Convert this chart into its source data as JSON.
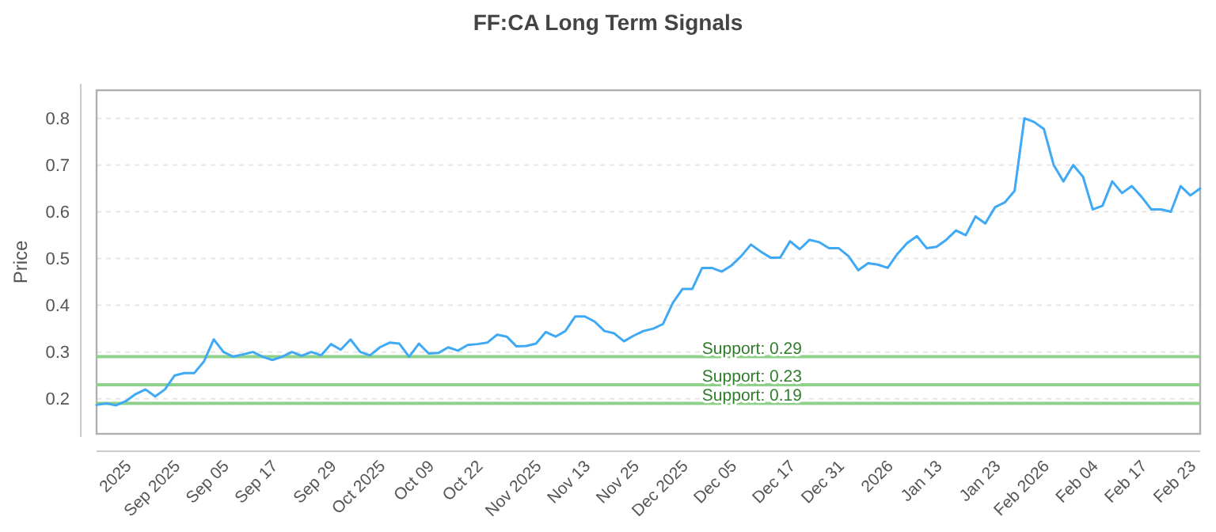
{
  "chart_data": {
    "type": "line",
    "title": "FF:CA Long Term Signals",
    "ylabel": "Price",
    "categories": [
      null,
      null,
      null,
      "2025",
      null,
      null,
      null,
      null,
      "Sep 2025",
      null,
      null,
      null,
      null,
      "Sep 05",
      null,
      null,
      null,
      null,
      "Sep 17",
      null,
      null,
      null,
      null,
      null,
      "Sep 29",
      null,
      null,
      null,
      null,
      "Oct 2025",
      null,
      null,
      null,
      null,
      "Oct 09",
      null,
      null,
      null,
      null,
      "Oct 22",
      null,
      null,
      null,
      null,
      null,
      "Nov 2025",
      null,
      null,
      null,
      null,
      "Nov 13",
      null,
      null,
      null,
      null,
      "Nov 25",
      null,
      null,
      null,
      null,
      "Dec 2025",
      null,
      null,
      null,
      null,
      "Dec 05",
      null,
      null,
      null,
      null,
      null,
      "Dec 17",
      null,
      null,
      null,
      null,
      "Dec 31",
      null,
      null,
      null,
      null,
      "2026",
      null,
      null,
      null,
      null,
      "Jan 13",
      null,
      null,
      null,
      null,
      null,
      "Jan 23",
      null,
      null,
      null,
      null,
      "Feb 2026",
      null,
      null,
      null,
      null,
      "Feb 04",
      null,
      null,
      null,
      null,
      "Feb 17",
      null,
      null,
      null,
      null,
      "Feb 23",
      null
    ],
    "series": [
      {
        "color": "#3fa9f5",
        "values": [
          0.187,
          0.19,
          0.186,
          0.195,
          0.21,
          0.22,
          0.205,
          0.22,
          0.25,
          0.255,
          0.255,
          0.28,
          0.327,
          0.3,
          0.29,
          0.295,
          0.3,
          0.29,
          0.283,
          0.29,
          0.3,
          0.292,
          0.3,
          0.293,
          0.317,
          0.305,
          0.327,
          0.3,
          0.293,
          0.31,
          0.32,
          0.318,
          0.29,
          0.318,
          0.297,
          0.298,
          0.31,
          0.303,
          0.315,
          0.317,
          0.32,
          0.337,
          0.333,
          0.312,
          0.313,
          0.318,
          0.343,
          0.333,
          0.345,
          0.376,
          0.376,
          0.365,
          0.345,
          0.34,
          0.323,
          0.335,
          0.345,
          0.35,
          0.36,
          0.405,
          0.435,
          0.435,
          0.48,
          0.48,
          0.472,
          0.485,
          0.505,
          0.53,
          0.515,
          0.502,
          0.502,
          0.537,
          0.52,
          0.54,
          0.535,
          0.522,
          0.522,
          0.505,
          0.475,
          0.49,
          0.487,
          0.48,
          0.51,
          0.533,
          0.548,
          0.522,
          0.525,
          0.54,
          0.56,
          0.55,
          0.59,
          0.575,
          0.61,
          0.62,
          0.645,
          0.8,
          0.792,
          0.777,
          0.7,
          0.665,
          0.7,
          0.675,
          0.605,
          0.613,
          0.665,
          0.64,
          0.655,
          0.632,
          0.605,
          0.605,
          0.6,
          0.655,
          0.635,
          0.65
        ]
      }
    ],
    "ylim": [
      0.125,
      0.86
    ],
    "yticks": [
      0.2,
      0.3,
      0.4,
      0.5,
      0.6,
      0.7,
      0.8
    ],
    "grid": "y",
    "marker": "none",
    "line_style": "solid",
    "ref_lines": [
      {
        "axis": "y",
        "value": 0.29,
        "label": "Support: 0.29",
        "color": "#8fd18a"
      },
      {
        "axis": "y",
        "value": 0.23,
        "label": "Support: 0.23",
        "color": "#8fd18a"
      },
      {
        "axis": "y",
        "value": 0.19,
        "label": "Support: 0.19",
        "color": "#8fd18a"
      }
    ]
  }
}
